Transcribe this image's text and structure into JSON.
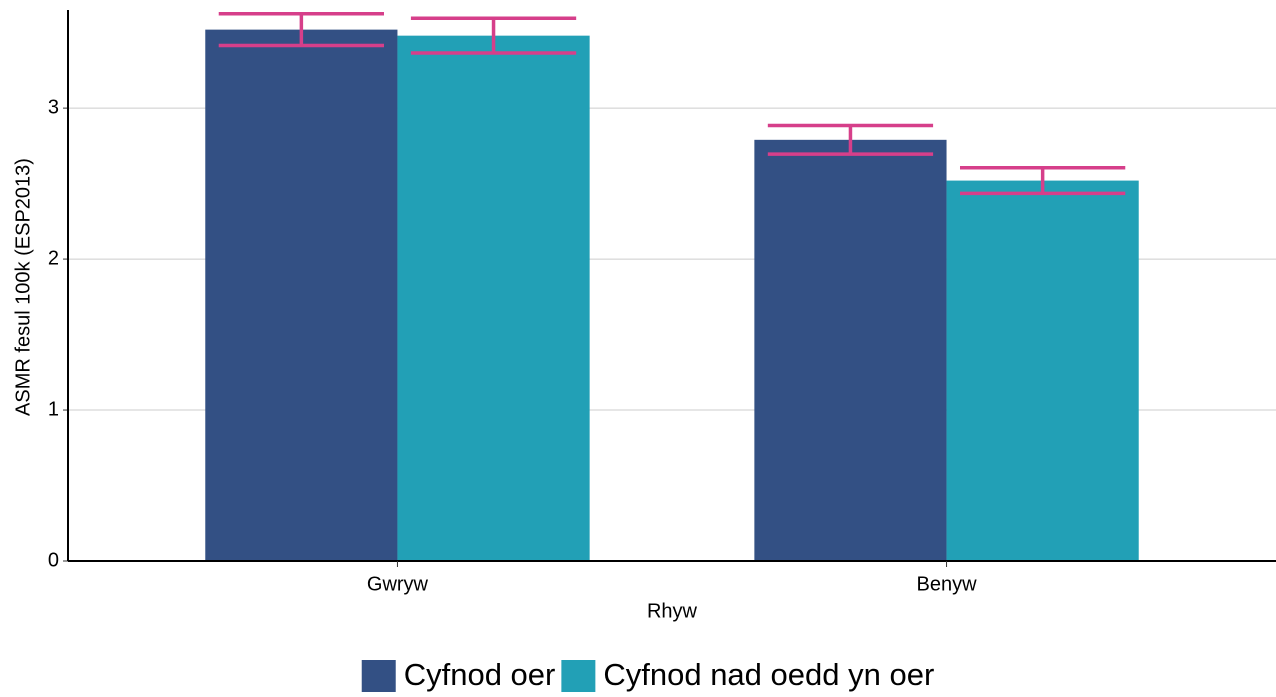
{
  "chart_data": {
    "type": "bar",
    "categories": [
      "Gwryw",
      "Benyw"
    ],
    "series": [
      {
        "name": "Cyfnod oer",
        "color": "#335084",
        "values": [
          3.52,
          2.79
        ],
        "errors": [
          0.105,
          0.095
        ]
      },
      {
        "name": "Cyfnod nad oedd yn oer",
        "color": "#22a0b6",
        "values": [
          3.48,
          2.52
        ],
        "errors": [
          0.115,
          0.085
        ]
      }
    ],
    "error_color": "#d63f8a",
    "x_label": "Rhyw",
    "y_label": "ASMR fesul 100k (ESP2013)",
    "ylim": [
      0,
      3.65
    ],
    "yticks": [
      0,
      1,
      2,
      3
    ],
    "grid": true,
    "legend": "bottom"
  }
}
